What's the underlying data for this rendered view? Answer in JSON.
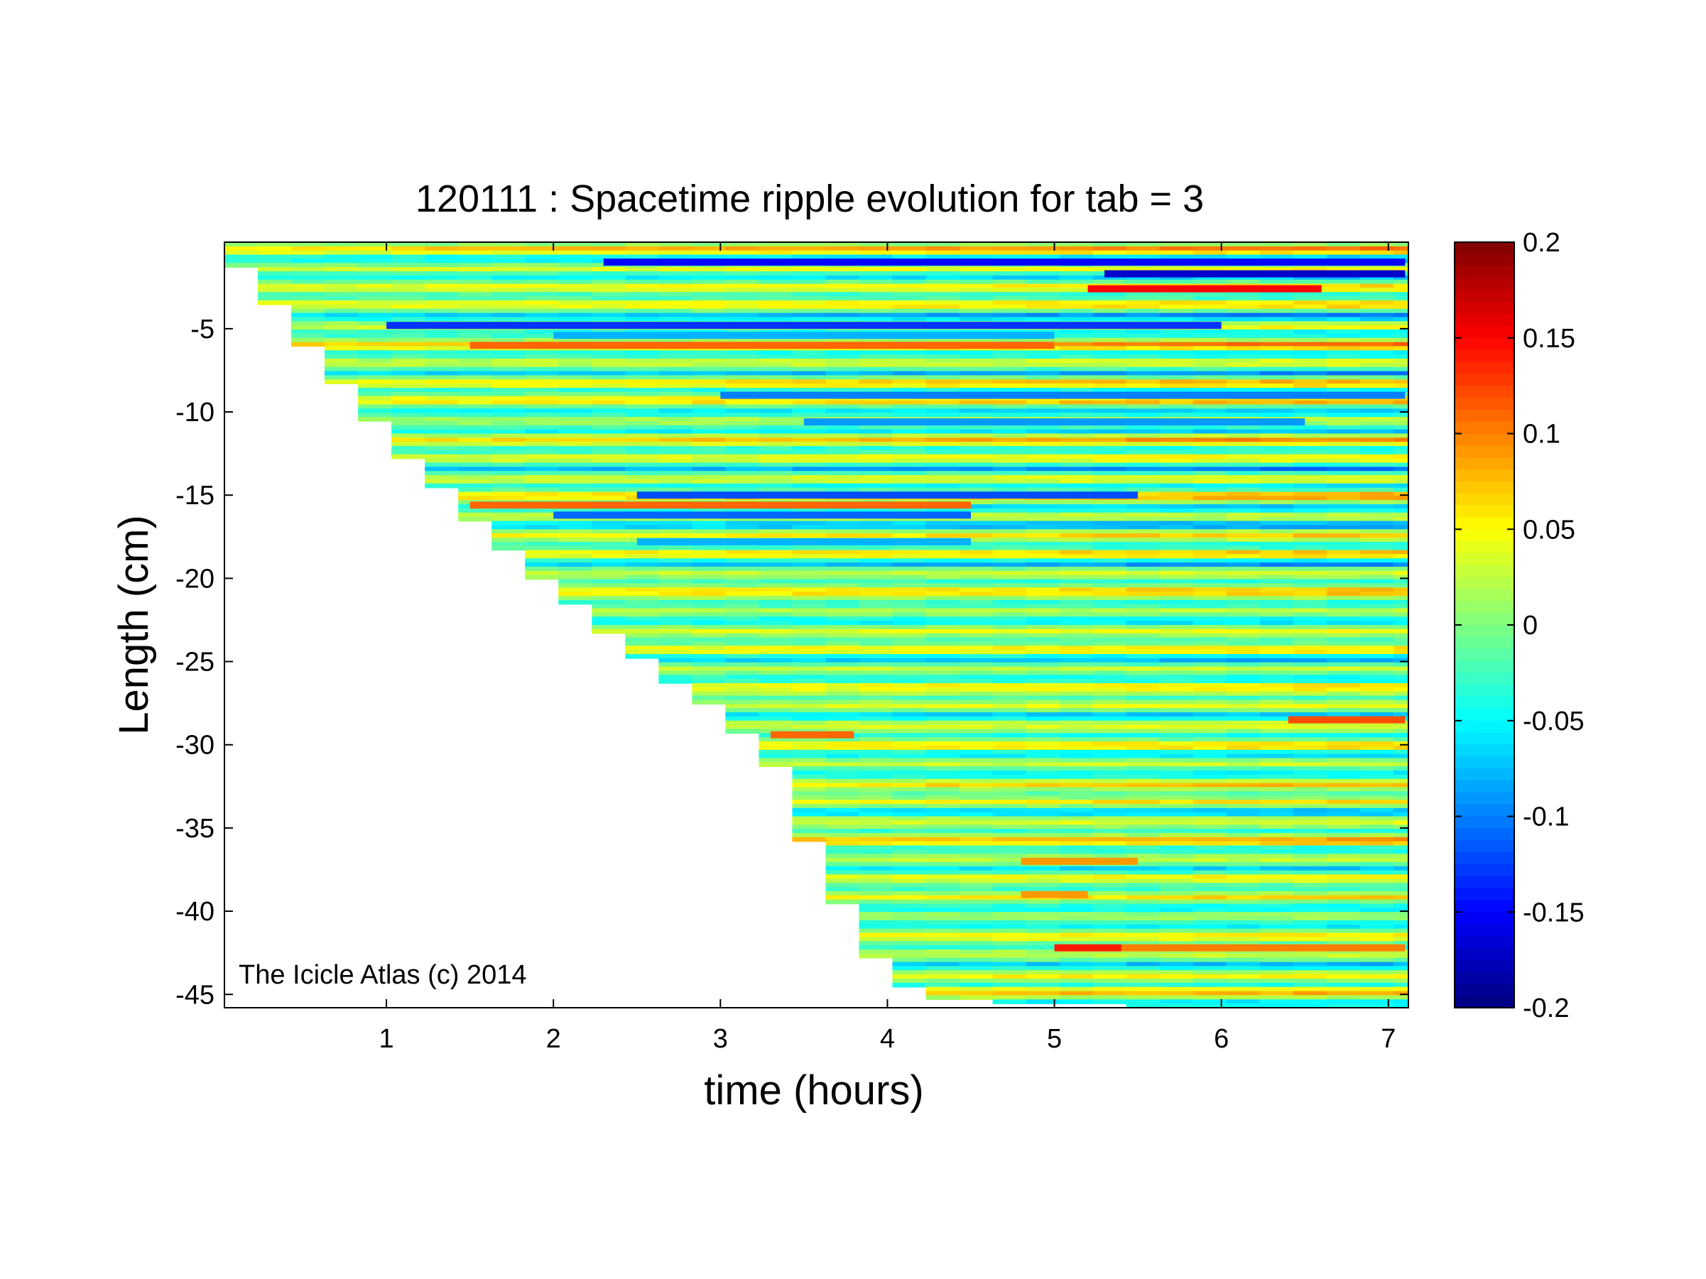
{
  "chart_data": {
    "type": "heatmap",
    "title": "120111 : Spacetime ripple evolution for tab = 3",
    "xlabel": "time (hours)",
    "ylabel": "Length (cm)",
    "xlim": [
      0.03,
      7.12
    ],
    "ylim": [
      -45.8,
      0.2
    ],
    "x_ticks": [
      1,
      2,
      3,
      4,
      5,
      6,
      7
    ],
    "x_tick_labels": [
      "1",
      "2",
      "3",
      "4",
      "5",
      "6",
      "7"
    ],
    "y_ticks": [
      -5,
      -10,
      -15,
      -20,
      -25,
      -30,
      -35,
      -40,
      -45
    ],
    "y_tick_labels": [
      "-5",
      "-10",
      "-15",
      "-20",
      "-25",
      "-30",
      "-35",
      "-40",
      "-45"
    ],
    "colorbar": {
      "colormap": "jet",
      "clim": [
        -0.2,
        0.2
      ],
      "ticks": [
        0.2,
        0.15,
        0.1,
        0.05,
        0,
        -0.05,
        -0.1,
        -0.15,
        -0.2
      ],
      "tick_labels": [
        "0.2",
        "0.15",
        "0.1",
        "0.05",
        "0",
        "-0.05",
        "-0.1",
        "-0.15",
        "-0.2"
      ]
    },
    "grid": false,
    "annotation": "The Icicle Atlas (c) 2014",
    "growth_front": {
      "time": [
        0.03,
        0.5,
        1.0,
        1.5,
        2.0,
        2.5,
        3.0,
        3.3,
        3.5,
        3.7,
        3.9,
        4.1,
        4.3,
        5.0,
        6.0,
        7.12
      ],
      "length": [
        0,
        -5.5,
        -11.3,
        -16.2,
        -20.5,
        -24.5,
        -28.0,
        -30.5,
        -35.0,
        -38.8,
        -42.5,
        -44.3,
        -45.2,
        -45.4,
        -45.7,
        -45.8
      ]
    },
    "features": [
      {
        "length": -1.0,
        "t_start": 2.3,
        "t_end": 7.1,
        "value": -0.15
      },
      {
        "length": -2.6,
        "t_start": 5.2,
        "t_end": 6.6,
        "value": 0.15
      },
      {
        "length": -1.7,
        "t_start": 5.3,
        "t_end": 7.1,
        "value": -0.17
      },
      {
        "length": -4.8,
        "t_start": 1.0,
        "t_end": 6.0,
        "value": -0.13
      },
      {
        "length": -6.0,
        "t_start": 1.5,
        "t_end": 5.0,
        "value": 0.11
      },
      {
        "length": -5.4,
        "t_start": 2.0,
        "t_end": 5.0,
        "value": -0.08
      },
      {
        "length": -9.0,
        "t_start": 3.0,
        "t_end": 7.1,
        "value": -0.1
      },
      {
        "length": -10.6,
        "t_start": 3.5,
        "t_end": 6.5,
        "value": -0.09
      },
      {
        "length": -15.0,
        "t_start": 2.5,
        "t_end": 5.5,
        "value": -0.12
      },
      {
        "length": -15.6,
        "t_start": 1.5,
        "t_end": 4.5,
        "value": 0.11
      },
      {
        "length": -16.2,
        "t_start": 2.0,
        "t_end": 4.5,
        "value": -0.11
      },
      {
        "length": -17.8,
        "t_start": 2.5,
        "t_end": 4.5,
        "value": -0.08
      },
      {
        "length": -29.4,
        "t_start": 3.3,
        "t_end": 3.8,
        "value": 0.11
      },
      {
        "length": -28.5,
        "t_start": 6.4,
        "t_end": 7.1,
        "value": 0.12
      },
      {
        "length": -37.0,
        "t_start": 4.8,
        "t_end": 5.5,
        "value": 0.09
      },
      {
        "length": -39.0,
        "t_start": 4.8,
        "t_end": 5.2,
        "value": 0.09
      },
      {
        "length": -42.2,
        "t_start": 5.0,
        "t_end": 5.4,
        "value": 0.14
      },
      {
        "length": -42.2,
        "t_start": 5.4,
        "t_end": 7.1,
        "value": 0.1
      }
    ]
  }
}
